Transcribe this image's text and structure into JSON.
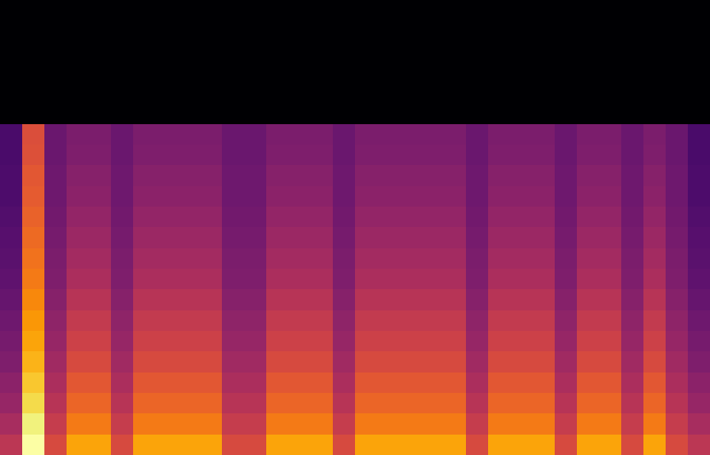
{
  "chart_data": {
    "type": "heatmap",
    "color": "inferno",
    "tick_labels": false,
    "cells": [
      [
        0,
        0,
        0,
        0,
        0,
        0,
        0,
        0,
        0,
        0,
        0,
        0,
        0,
        0,
        0,
        0,
        0,
        0,
        0,
        0,
        0,
        0,
        0,
        0,
        0,
        0,
        0,
        0,
        0,
        0,
        0,
        0
      ],
      [
        0,
        0,
        0,
        0,
        0,
        0,
        0,
        0,
        0,
        0,
        0,
        0,
        0,
        0,
        0,
        0,
        0,
        0,
        0,
        0,
        0,
        0,
        0,
        0,
        0,
        0,
        0,
        0,
        0,
        0,
        0,
        0
      ],
      [
        0,
        0,
        0,
        0,
        0,
        0,
        0,
        0,
        0,
        0,
        0,
        0,
        0,
        0,
        0,
        0,
        0,
        0,
        0,
        0,
        0,
        0,
        0,
        0,
        0,
        0,
        0,
        0,
        0,
        0,
        0,
        0
      ],
      [
        0,
        0,
        0,
        0,
        0,
        0,
        0,
        0,
        0,
        0,
        0,
        0,
        0,
        0,
        0,
        0,
        0,
        0,
        0,
        0,
        0,
        0,
        0,
        0,
        0,
        0,
        0,
        0,
        0,
        0,
        0,
        0
      ],
      [
        0,
        0,
        0,
        0,
        0,
        0,
        0,
        0,
        0,
        0,
        0,
        0,
        0,
        0,
        0,
        0,
        0,
        0,
        0,
        0,
        0,
        0,
        0,
        0,
        0,
        0,
        0,
        0,
        0,
        0,
        0,
        0
      ],
      [
        0,
        0,
        0,
        0,
        0,
        0,
        0,
        0,
        0,
        0,
        0,
        0,
        0,
        0,
        0,
        0,
        0,
        0,
        0,
        0,
        0,
        0,
        0,
        0,
        0,
        0,
        0,
        0,
        0,
        0,
        0,
        0
      ],
      [
        0.22,
        0.59,
        0.3,
        0.34,
        0.34,
        0.3,
        0.34,
        0.34,
        0.34,
        0.34,
        0.3,
        0.3,
        0.34,
        0.34,
        0.34,
        0.3,
        0.34,
        0.34,
        0.34,
        0.34,
        0.34,
        0.3,
        0.34,
        0.34,
        0.34,
        0.3,
        0.34,
        0.34,
        0.3,
        0.34,
        0.3,
        0.22
      ],
      [
        0.22,
        0.6,
        0.3,
        0.35,
        0.35,
        0.3,
        0.35,
        0.35,
        0.35,
        0.35,
        0.3,
        0.3,
        0.35,
        0.35,
        0.35,
        0.3,
        0.35,
        0.35,
        0.35,
        0.35,
        0.35,
        0.3,
        0.35,
        0.35,
        0.35,
        0.3,
        0.35,
        0.35,
        0.3,
        0.35,
        0.3,
        0.22
      ],
      [
        0.23,
        0.62,
        0.31,
        0.37,
        0.37,
        0.31,
        0.37,
        0.37,
        0.37,
        0.37,
        0.31,
        0.31,
        0.37,
        0.37,
        0.37,
        0.31,
        0.37,
        0.37,
        0.37,
        0.37,
        0.37,
        0.31,
        0.37,
        0.37,
        0.37,
        0.31,
        0.37,
        0.37,
        0.31,
        0.37,
        0.31,
        0.23
      ],
      [
        0.23,
        0.63,
        0.31,
        0.38,
        0.38,
        0.31,
        0.38,
        0.38,
        0.38,
        0.38,
        0.31,
        0.31,
        0.38,
        0.38,
        0.38,
        0.31,
        0.38,
        0.38,
        0.38,
        0.38,
        0.38,
        0.31,
        0.38,
        0.38,
        0.38,
        0.31,
        0.38,
        0.38,
        0.31,
        0.38,
        0.31,
        0.23
      ],
      [
        0.24,
        0.65,
        0.32,
        0.4,
        0.4,
        0.32,
        0.4,
        0.4,
        0.4,
        0.4,
        0.32,
        0.32,
        0.4,
        0.4,
        0.4,
        0.32,
        0.4,
        0.4,
        0.4,
        0.4,
        0.4,
        0.32,
        0.4,
        0.4,
        0.4,
        0.32,
        0.4,
        0.4,
        0.32,
        0.4,
        0.32,
        0.24
      ],
      [
        0.25,
        0.67,
        0.33,
        0.42,
        0.42,
        0.33,
        0.42,
        0.42,
        0.42,
        0.42,
        0.33,
        0.33,
        0.42,
        0.42,
        0.42,
        0.33,
        0.42,
        0.42,
        0.42,
        0.42,
        0.42,
        0.33,
        0.42,
        0.42,
        0.42,
        0.33,
        0.42,
        0.42,
        0.33,
        0.42,
        0.33,
        0.25
      ],
      [
        0.26,
        0.69,
        0.34,
        0.44,
        0.44,
        0.34,
        0.44,
        0.44,
        0.44,
        0.44,
        0.34,
        0.34,
        0.44,
        0.44,
        0.44,
        0.34,
        0.44,
        0.44,
        0.44,
        0.44,
        0.44,
        0.34,
        0.44,
        0.44,
        0.44,
        0.34,
        0.44,
        0.44,
        0.34,
        0.44,
        0.34,
        0.26
      ],
      [
        0.27,
        0.71,
        0.35,
        0.46,
        0.46,
        0.35,
        0.46,
        0.46,
        0.46,
        0.46,
        0.35,
        0.35,
        0.46,
        0.46,
        0.46,
        0.35,
        0.46,
        0.46,
        0.46,
        0.46,
        0.46,
        0.35,
        0.46,
        0.46,
        0.46,
        0.35,
        0.46,
        0.46,
        0.35,
        0.46,
        0.35,
        0.27
      ],
      [
        0.29,
        0.74,
        0.37,
        0.49,
        0.49,
        0.37,
        0.49,
        0.49,
        0.49,
        0.49,
        0.37,
        0.37,
        0.49,
        0.49,
        0.49,
        0.37,
        0.49,
        0.49,
        0.49,
        0.49,
        0.49,
        0.37,
        0.49,
        0.49,
        0.49,
        0.37,
        0.49,
        0.49,
        0.37,
        0.49,
        0.37,
        0.29
      ],
      [
        0.31,
        0.77,
        0.39,
        0.52,
        0.52,
        0.39,
        0.52,
        0.52,
        0.52,
        0.52,
        0.39,
        0.39,
        0.52,
        0.52,
        0.52,
        0.39,
        0.52,
        0.52,
        0.52,
        0.52,
        0.52,
        0.39,
        0.52,
        0.52,
        0.52,
        0.39,
        0.52,
        0.52,
        0.39,
        0.52,
        0.39,
        0.31
      ],
      [
        0.33,
        0.8,
        0.41,
        0.55,
        0.55,
        0.41,
        0.55,
        0.55,
        0.55,
        0.55,
        0.41,
        0.41,
        0.55,
        0.55,
        0.55,
        0.41,
        0.55,
        0.55,
        0.55,
        0.55,
        0.55,
        0.41,
        0.55,
        0.55,
        0.55,
        0.41,
        0.55,
        0.55,
        0.41,
        0.55,
        0.41,
        0.33
      ],
      [
        0.35,
        0.83,
        0.43,
        0.58,
        0.58,
        0.43,
        0.58,
        0.58,
        0.58,
        0.58,
        0.43,
        0.43,
        0.58,
        0.58,
        0.58,
        0.43,
        0.58,
        0.58,
        0.58,
        0.58,
        0.58,
        0.43,
        0.58,
        0.58,
        0.58,
        0.43,
        0.58,
        0.58,
        0.43,
        0.58,
        0.43,
        0.35
      ],
      [
        0.38,
        0.87,
        0.46,
        0.62,
        0.62,
        0.46,
        0.62,
        0.62,
        0.62,
        0.62,
        0.46,
        0.46,
        0.62,
        0.62,
        0.62,
        0.46,
        0.62,
        0.62,
        0.62,
        0.62,
        0.62,
        0.46,
        0.62,
        0.62,
        0.62,
        0.46,
        0.62,
        0.62,
        0.46,
        0.62,
        0.46,
        0.38
      ],
      [
        0.41,
        0.91,
        0.49,
        0.66,
        0.66,
        0.49,
        0.66,
        0.66,
        0.66,
        0.66,
        0.49,
        0.49,
        0.66,
        0.66,
        0.66,
        0.49,
        0.66,
        0.66,
        0.66,
        0.66,
        0.66,
        0.49,
        0.66,
        0.66,
        0.66,
        0.49,
        0.66,
        0.66,
        0.49,
        0.66,
        0.49,
        0.41
      ],
      [
        0.45,
        0.96,
        0.53,
        0.71,
        0.71,
        0.53,
        0.71,
        0.71,
        0.71,
        0.71,
        0.53,
        0.53,
        0.71,
        0.71,
        0.71,
        0.53,
        0.71,
        0.71,
        0.71,
        0.71,
        0.71,
        0.53,
        0.71,
        0.71,
        0.71,
        0.53,
        0.71,
        0.71,
        0.53,
        0.71,
        0.53,
        0.45
      ],
      [
        0.5,
        1.0,
        0.58,
        0.8,
        0.8,
        0.58,
        0.8,
        0.8,
        0.8,
        0.8,
        0.58,
        0.58,
        0.8,
        0.8,
        0.8,
        0.58,
        0.8,
        0.8,
        0.8,
        0.8,
        0.8,
        0.58,
        0.8,
        0.8,
        0.8,
        0.58,
        0.8,
        0.8,
        0.58,
        0.8,
        0.58,
        0.5
      ]
    ]
  }
}
